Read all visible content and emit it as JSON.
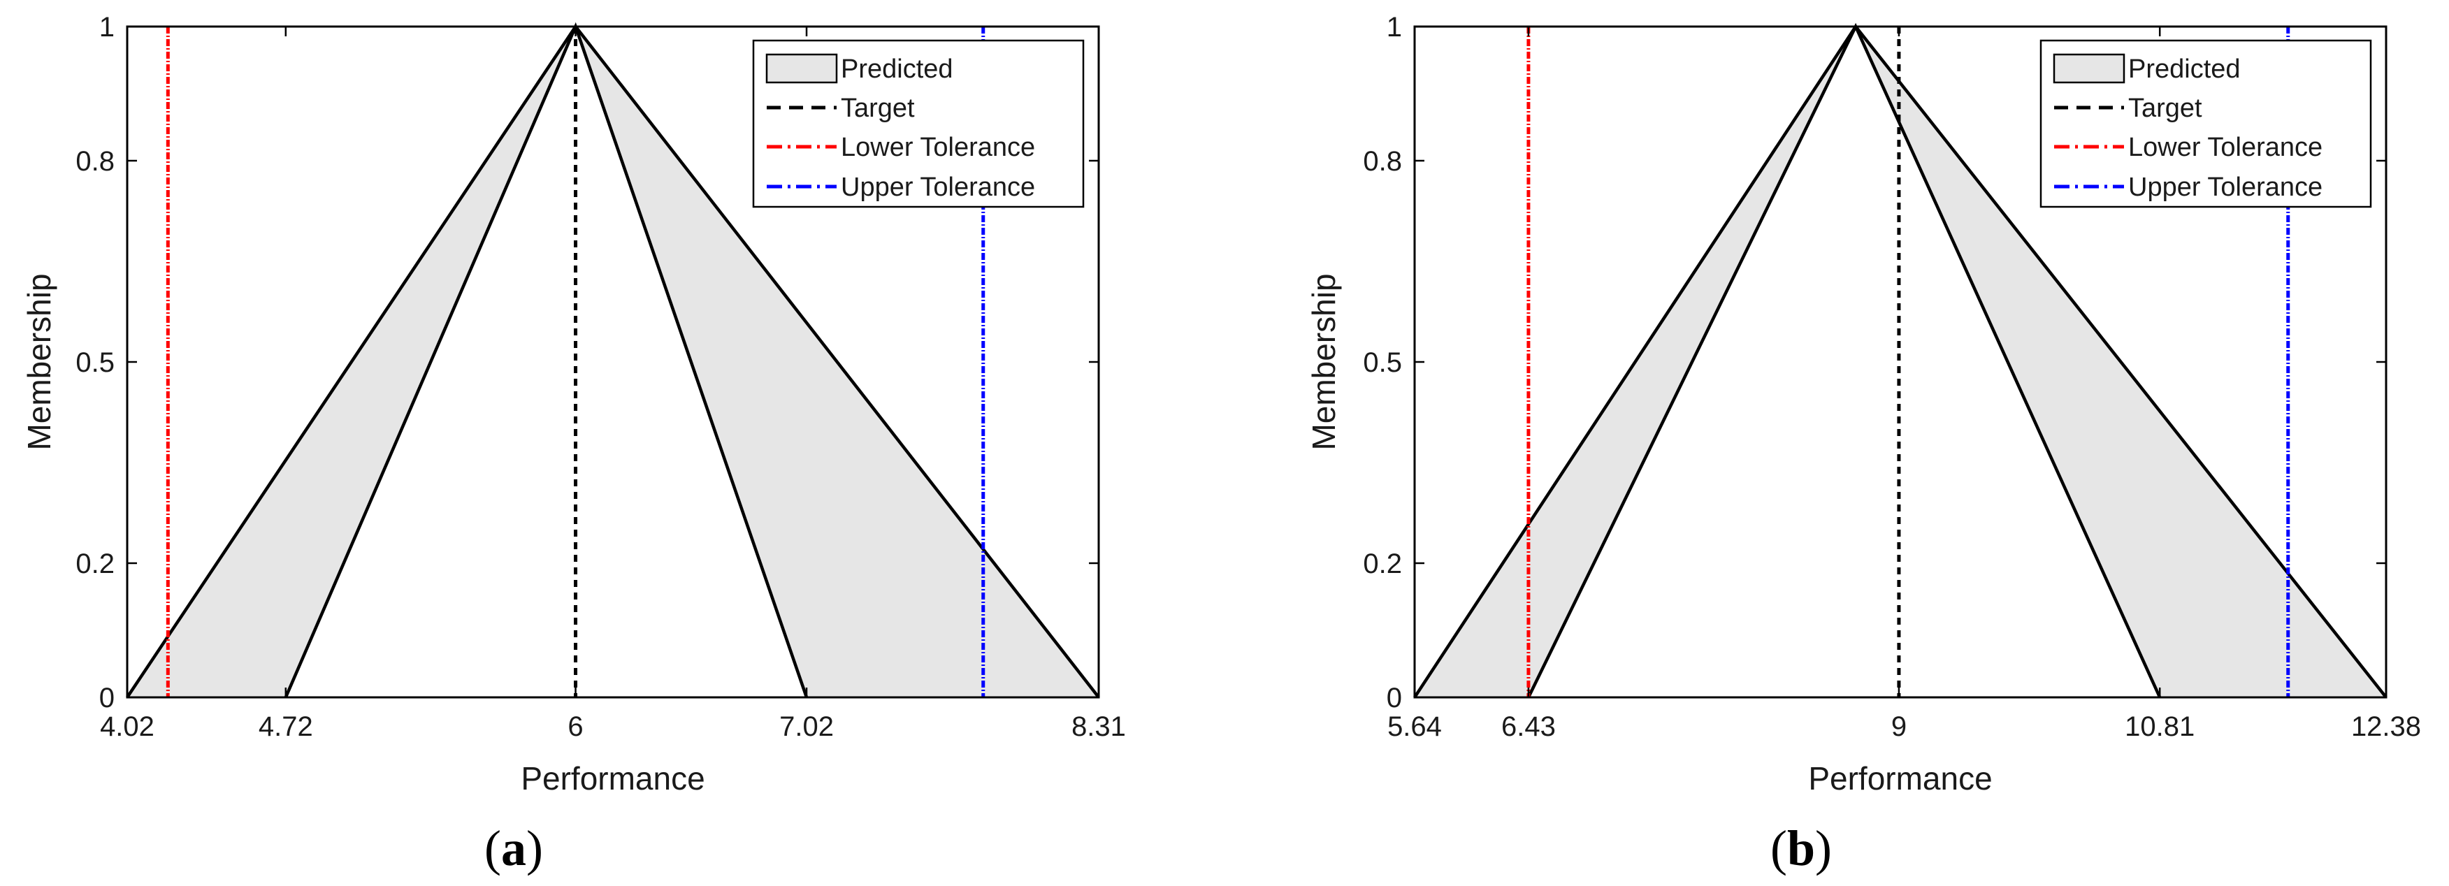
{
  "colors": {
    "predicted_fill": "#e6e6e6",
    "outline": "#000000",
    "target": "#000000",
    "lower_tolerance": "#ff0000",
    "upper_tolerance": "#0000ff"
  },
  "chart_data": [
    {
      "type": "area",
      "panel": "(a)",
      "panel_text": "a",
      "xlabel": "Performance",
      "ylabel": "Membership",
      "xlim": [
        4.02,
        8.31
      ],
      "ylim": [
        0,
        1
      ],
      "xticks": [
        4.02,
        4.72,
        6,
        7.02,
        8.31
      ],
      "xtick_labels": [
        "4.02",
        "4.72",
        "6",
        "7.02",
        "8.31"
      ],
      "yticks": [
        0,
        0.2,
        0.5,
        0.8,
        1
      ],
      "ytick_labels": [
        "0",
        "0.2",
        "0.5",
        "0.8",
        "1"
      ],
      "legend": {
        "position": "top-right",
        "entries": [
          "Predicted",
          "Target",
          "Lower Tolerance",
          "Upper Tolerance"
        ]
      },
      "predicted": {
        "outer": [
          4.02,
          6,
          8.31
        ],
        "inner": [
          4.72,
          6,
          7.02
        ]
      },
      "target": 6,
      "lower_tolerance": 4.2,
      "upper_tolerance": 7.8
    },
    {
      "type": "area",
      "panel": "(b)",
      "panel_text": "b",
      "xlabel": "Performance",
      "ylabel": "Membership",
      "xlim": [
        5.64,
        12.38
      ],
      "ylim": [
        0,
        1
      ],
      "xticks": [
        5.64,
        6.43,
        9,
        10.81,
        12.38
      ],
      "xtick_labels": [
        "5.64",
        "6.43",
        "9",
        "10.81",
        "12.38"
      ],
      "yticks": [
        0,
        0.2,
        0.5,
        0.8,
        1
      ],
      "ytick_labels": [
        "0",
        "0.2",
        "0.5",
        "0.8",
        "1"
      ],
      "legend": {
        "position": "top-right",
        "entries": [
          "Predicted",
          "Target",
          "Lower Tolerance",
          "Upper Tolerance"
        ]
      },
      "predicted": {
        "outer": [
          5.64,
          8.7,
          12.38
        ],
        "inner": [
          6.43,
          8.7,
          10.81
        ]
      },
      "target": 9,
      "lower_tolerance": 6.43,
      "upper_tolerance": 11.7
    }
  ]
}
